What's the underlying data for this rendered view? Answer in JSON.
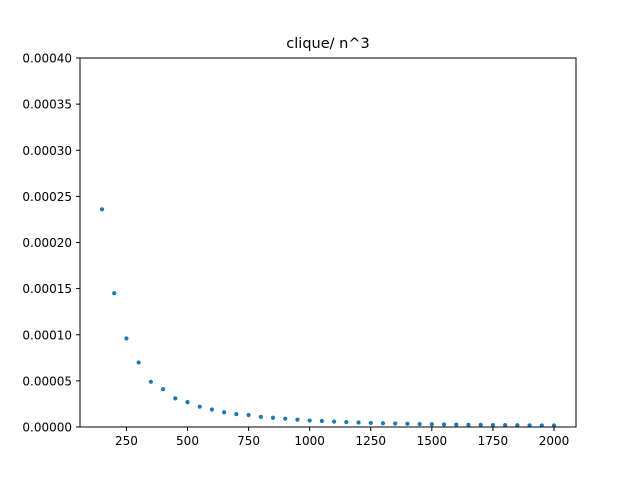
{
  "chart_data": {
    "type": "scatter",
    "title": "clique/ n^3",
    "xlabel": "",
    "ylabel": "",
    "xlim": [
      60,
      2090
    ],
    "ylim": [
      0,
      0.0004
    ],
    "grid": false,
    "marker_color": "#1f77b4",
    "x_ticks": [
      {
        "value": 250,
        "label": "250"
      },
      {
        "value": 500,
        "label": "500"
      },
      {
        "value": 750,
        "label": "750"
      },
      {
        "value": 1000,
        "label": "1000"
      },
      {
        "value": 1250,
        "label": "1250"
      },
      {
        "value": 1500,
        "label": "1500"
      },
      {
        "value": 1750,
        "label": "1750"
      },
      {
        "value": 2000,
        "label": "2000"
      }
    ],
    "y_ticks": [
      {
        "value": 0,
        "label": "0.00000"
      },
      {
        "value": 5e-05,
        "label": "0.00005"
      },
      {
        "value": 0.0001,
        "label": "0.00010"
      },
      {
        "value": 0.00015,
        "label": "0.00015"
      },
      {
        "value": 0.0002,
        "label": "0.00020"
      },
      {
        "value": 0.00025,
        "label": "0.00025"
      },
      {
        "value": 0.0003,
        "label": "0.00030"
      },
      {
        "value": 0.00035,
        "label": "0.00035"
      },
      {
        "value": 0.0004,
        "label": "0.00040"
      }
    ],
    "points": [
      [
        150,
        0.000236
      ],
      [
        200,
        0.000145
      ],
      [
        250,
        9.6e-05
      ],
      [
        300,
        7e-05
      ],
      [
        350,
        4.9e-05
      ],
      [
        400,
        4.1e-05
      ],
      [
        450,
        3.1e-05
      ],
      [
        500,
        2.7e-05
      ],
      [
        550,
        2.2e-05
      ],
      [
        600,
        1.9e-05
      ],
      [
        650,
        1.6e-05
      ],
      [
        700,
        1.4e-05
      ],
      [
        750,
        1.3e-05
      ],
      [
        800,
        1.1e-05
      ],
      [
        850,
        1e-05
      ],
      [
        900,
        9e-06
      ],
      [
        950,
        8e-06
      ],
      [
        1000,
        7e-06
      ],
      [
        1050,
        6.5e-06
      ],
      [
        1100,
        5.8e-06
      ],
      [
        1150,
        5.3e-06
      ],
      [
        1200,
        4.9e-06
      ],
      [
        1250,
        4.4e-06
      ],
      [
        1300,
        4.1e-06
      ],
      [
        1350,
        3.8e-06
      ],
      [
        1400,
        3.5e-06
      ],
      [
        1450,
        3.2e-06
      ],
      [
        1500,
        3e-06
      ],
      [
        1550,
        2.8e-06
      ],
      [
        1600,
        2.6e-06
      ],
      [
        1650,
        2.4e-06
      ],
      [
        1700,
        2.3e-06
      ],
      [
        1750,
        2.1e-06
      ],
      [
        1800,
        2e-06
      ],
      [
        1850,
        1.9e-06
      ],
      [
        1900,
        1.8e-06
      ],
      [
        1950,
        1.7e-06
      ],
      [
        2000,
        1.6e-06
      ]
    ]
  }
}
